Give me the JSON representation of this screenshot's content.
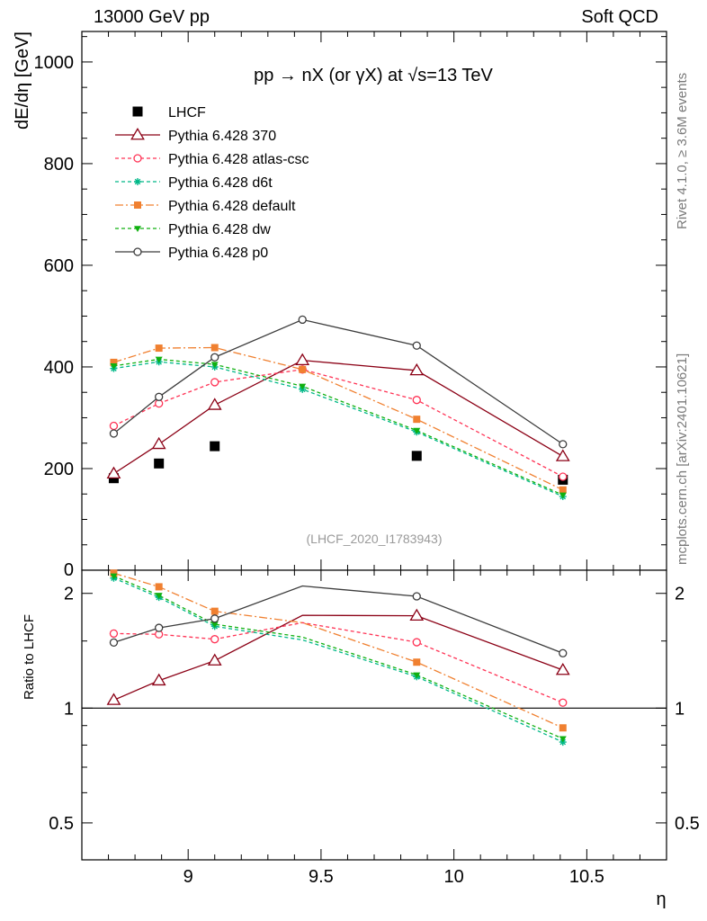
{
  "header": {
    "left": "13000 GeV pp",
    "right": "Soft QCD"
  },
  "side_labels": {
    "rivet": "Rivet 4.1.0, ≥ 3.6M events",
    "mcplots": "mcplots.cern.ch [arXiv:2401.10621]"
  },
  "chart_data": {
    "type": "line",
    "title": "pp → nX (or γX) at √s=13 TeV",
    "analysis_tag": "(LHCF_2020_I1783943)",
    "xlabel": "η",
    "ylabel": "dE/dη [GeV]",
    "ratio_ylabel": "Ratio to LHCF",
    "xlim": [
      8.6,
      10.8
    ],
    "ylim": [
      0,
      1060
    ],
    "ratio_ylim": [
      0.4,
      2.3
    ],
    "x_ticks": [
      {
        "value": 9,
        "label": "9"
      },
      {
        "value": 9.5,
        "label": "9.5"
      },
      {
        "value": 10,
        "label": "10"
      },
      {
        "value": 10.5,
        "label": "10.5"
      }
    ],
    "y_ticks": [
      {
        "value": 0,
        "label": "0"
      },
      {
        "value": 200,
        "label": "200"
      },
      {
        "value": 400,
        "label": "400"
      },
      {
        "value": 600,
        "label": "600"
      },
      {
        "value": 800,
        "label": "800"
      },
      {
        "value": 1000,
        "label": "1000"
      }
    ],
    "ratio_ticks": [
      {
        "value": 0.5,
        "label": "0.5"
      },
      {
        "value": 1,
        "label": "1"
      },
      {
        "value": 2,
        "label": "2"
      }
    ],
    "x": [
      8.72,
      8.89,
      9.1,
      9.43,
      9.86,
      10.41
    ],
    "series": [
      {
        "name": "LHCF",
        "color": "#000000",
        "marker": "square-filled",
        "dash": "none",
        "values": [
          181,
          210,
          244,
          null,
          225,
          178
        ]
      },
      {
        "name": "Pythia 6.428 370",
        "color": "#8b0015",
        "marker": "triangle-open",
        "dash": "solid",
        "values": [
          190,
          248,
          325,
          413,
          393,
          224
        ]
      },
      {
        "name": "Pythia 6.428 atlas-csc",
        "color": "#ff3355",
        "marker": "circle-open",
        "dash": "4,3",
        "values": [
          284,
          328,
          370,
          395,
          335,
          184
        ]
      },
      {
        "name": "Pythia 6.428 d6t",
        "color": "#00b888",
        "marker": "star",
        "dash": "4,3",
        "values": [
          397,
          410,
          400,
          356,
          272,
          145
        ]
      },
      {
        "name": "Pythia 6.428 default",
        "color": "#f08030",
        "marker": "square-filled",
        "dash": "9,3,2,3",
        "values": [
          409,
          437,
          438,
          395,
          297,
          158
        ]
      },
      {
        "name": "Pythia 6.428 dw",
        "color": "#10b010",
        "marker": "triangle-down-filled",
        "dash": "4,3",
        "values": [
          402,
          415,
          405,
          362,
          275,
          148
        ]
      },
      {
        "name": "Pythia 6.428 p0",
        "color": "#3c3c3c",
        "marker": "circle-open",
        "dash": "solid",
        "values": [
          269,
          341,
          419,
          493,
          442,
          248
        ]
      }
    ]
  }
}
